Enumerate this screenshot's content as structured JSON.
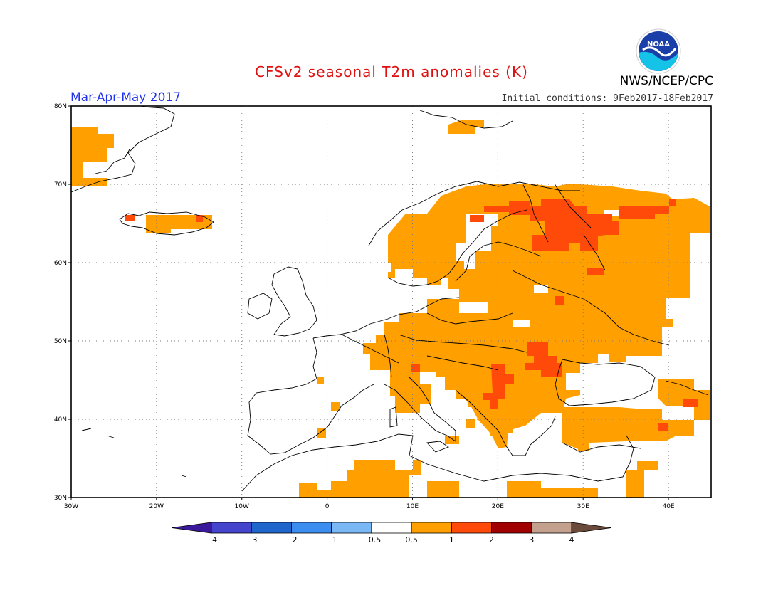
{
  "title": "CFSv2 seasonal T2m anomalies (K)",
  "season": "Mar-Apr-May 2017",
  "initial_conditions": "Initial conditions: 9Feb2017-18Feb2017",
  "agency": "NWS/NCEP/CPC",
  "logo_text": "NOAA",
  "map": {
    "lat_ticks": [
      "80N",
      "70N",
      "60N",
      "50N",
      "40N",
      "30N"
    ],
    "lon_ticks": [
      "30W",
      "20W",
      "10W",
      "0",
      "10E",
      "20E",
      "30E",
      "40E"
    ]
  },
  "colorbar": {
    "colors": [
      "#3a1a9a",
      "#4444cc",
      "#1f66cc",
      "#3b8ef0",
      "#7ab8f5",
      "#ffffff",
      "#ffa000",
      "#ff4a0a",
      "#a00000",
      "#c4a08e",
      "#6a4a3a"
    ],
    "labels": [
      "-4",
      "-3",
      "-2",
      "-1",
      "-0.5",
      "0.5",
      "1",
      "2",
      "3",
      "4"
    ]
  },
  "colors": {
    "orange": "#ffa000",
    "red": "#ff4a0a",
    "coast": "#000000"
  }
}
